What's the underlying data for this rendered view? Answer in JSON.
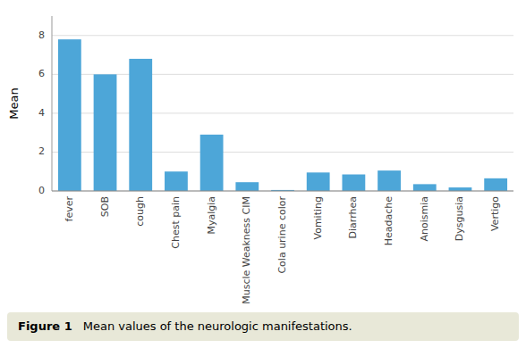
{
  "chart_data": {
    "type": "bar",
    "categories": [
      "fever",
      "SOB",
      "cough",
      "Chest pain",
      "Myalgia",
      "Muscle Weakness CIM",
      "Cola urine color",
      "Vomiting",
      "Diarrhea",
      "Headache",
      "Anoismia",
      "Dysgusia",
      "Vertigo"
    ],
    "values": [
      7.8,
      6.0,
      6.8,
      1.0,
      2.9,
      0.45,
      0.05,
      0.95,
      0.85,
      1.05,
      0.35,
      0.18,
      0.65
    ],
    "color": "#4da6d8",
    "ylabel": "Mean",
    "ylim": [
      0,
      9
    ],
    "yticks": [
      0,
      2,
      4,
      6,
      8
    ],
    "grid": true,
    "annotations": [
      "Figure 1",
      "Mean values of the neurologic manifestations."
    ]
  }
}
